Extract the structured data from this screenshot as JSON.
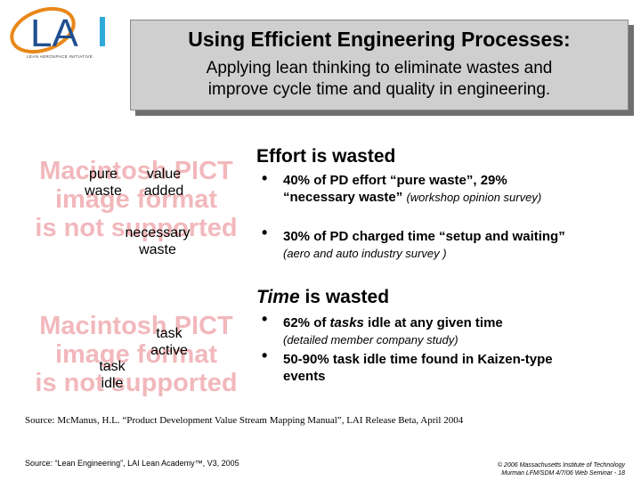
{
  "logo": {
    "text": "LAI",
    "subtitle": "LEAN AEROSPACE INITIATIVE",
    "colors": {
      "ring": "#e8881a",
      "text": "#1f4f8f",
      "i": "#2fa9d9"
    }
  },
  "title": {
    "main": "Using Efficient Engineering Processes:",
    "sub_line1": "Applying lean thinking to eliminate wastes and",
    "sub_line2": "improve cycle time and quality in engineering."
  },
  "placeholder": {
    "line1": "Macintosh PICT",
    "line2": "image format",
    "line3": "is not supported",
    "color": "#f2b8bc"
  },
  "figure1": {
    "labels": {
      "pure_waste_1": "pure",
      "pure_waste_2": "waste",
      "value_added_1": "value",
      "value_added_2": "added",
      "necessary_waste_1": "necessary",
      "necessary_waste_2": "waste"
    }
  },
  "figure2": {
    "labels": {
      "task_active_1": "task",
      "task_active_2": "active",
      "task_idle_1": "task",
      "task_idle_2": "idle"
    }
  },
  "section1": {
    "heading": "Effort is wasted",
    "bullet1": {
      "bold": "40% of PD effort “pure waste”, 29% “necessary waste”",
      "note": "(workshop opinion survey)"
    },
    "bullet2": {
      "bold": "30% of PD charged time “setup and waiting”",
      "note": "(aero and auto industry survey )"
    }
  },
  "section2": {
    "heading_italic": "Time",
    "heading_rest": " is wasted",
    "bullet1": {
      "bold_pre": "62% of ",
      "bold_italic": "tasks",
      "bold_post": " idle at any given time",
      "note": "(detailed member company study)"
    },
    "bullet2": {
      "bold": "50-90% task idle time found in Kaizen-type events"
    }
  },
  "footer": {
    "source1": "Source: McManus, H.L. “Product Development Value Stream Mapping Manual”, LAI Release Beta, April 2004",
    "source2": "Source: “Lean Engineering”, LAI Lean Academy™, V3, 2005",
    "copyright1": "© 2006 Massachusetts Institute of Technology",
    "copyright2": "Murman LFM/SDM 4/7/06 Web Seminar - 18"
  }
}
